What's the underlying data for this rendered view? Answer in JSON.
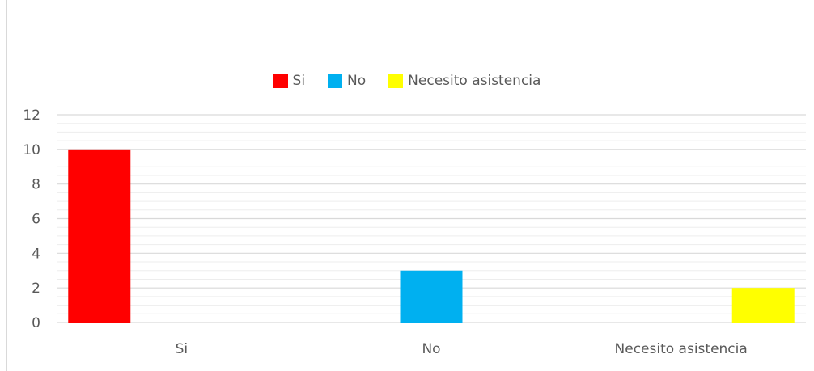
{
  "chart_data": {
    "type": "bar",
    "title": "",
    "xlabel": "",
    "ylabel": "",
    "categories": [
      "Si",
      "No",
      "Necesito asistencia"
    ],
    "series": [
      {
        "name": "Si",
        "color": "#ff0000",
        "values": [
          10,
          null,
          null
        ]
      },
      {
        "name": "No",
        "color": "#00b0f0",
        "values": [
          null,
          3,
          null
        ]
      },
      {
        "name": "Necesito asistencia",
        "color": "#ffff00",
        "values": [
          null,
          null,
          2
        ]
      }
    ],
    "ylim": [
      0,
      12
    ],
    "yticks": [
      "0",
      "2",
      "4",
      "6",
      "8",
      "10",
      "12"
    ],
    "grid": true,
    "legend_position": "top"
  }
}
